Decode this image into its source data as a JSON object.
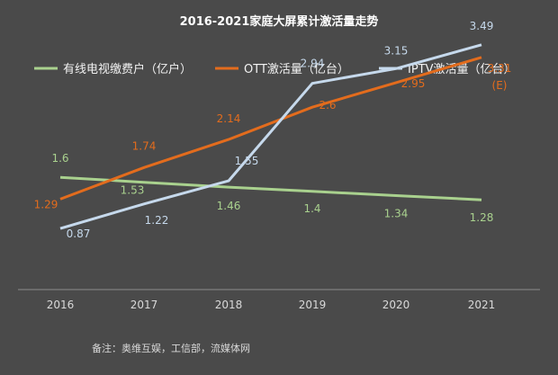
{
  "chart_data": {
    "type": "line",
    "title": "2016-2021家庭大屏累计激活量走势",
    "categories": [
      "2016",
      "2017",
      "2018",
      "2019",
      "2020",
      "2021"
    ],
    "ylim": [
      0,
      4
    ],
    "grid": false,
    "legend_position": "top",
    "series": [
      {
        "name": "有线电视缴费户（亿户）",
        "color": "#a9d18e",
        "values": [
          1.6,
          1.53,
          1.46,
          1.4,
          1.34,
          1.28
        ],
        "labels": [
          "1.6",
          "1.53",
          "1.46",
          "1.4",
          "1.34",
          "1.28"
        ]
      },
      {
        "name": "OTT激活量（亿台）",
        "color": "#e36c1d",
        "values": [
          1.29,
          1.74,
          2.14,
          2.6,
          2.95,
          3.31
        ],
        "labels": [
          "1.29",
          "1.74",
          "2.14",
          "2.6",
          "2.95",
          "3.31"
        ]
      },
      {
        "name": "IPTV激活量（亿台）",
        "color": "#c6d9ec",
        "values": [
          0.87,
          1.22,
          1.55,
          2.94,
          3.15,
          3.49
        ],
        "labels": [
          "0.87",
          "1.22",
          "1.55",
          "2.94",
          "3.15",
          "3.49"
        ]
      }
    ],
    "annotations": [
      {
        "text": "(E)",
        "series": 1,
        "index": 5
      }
    ]
  },
  "footnote": "备注：奥维互娱，工信部，流媒体网"
}
